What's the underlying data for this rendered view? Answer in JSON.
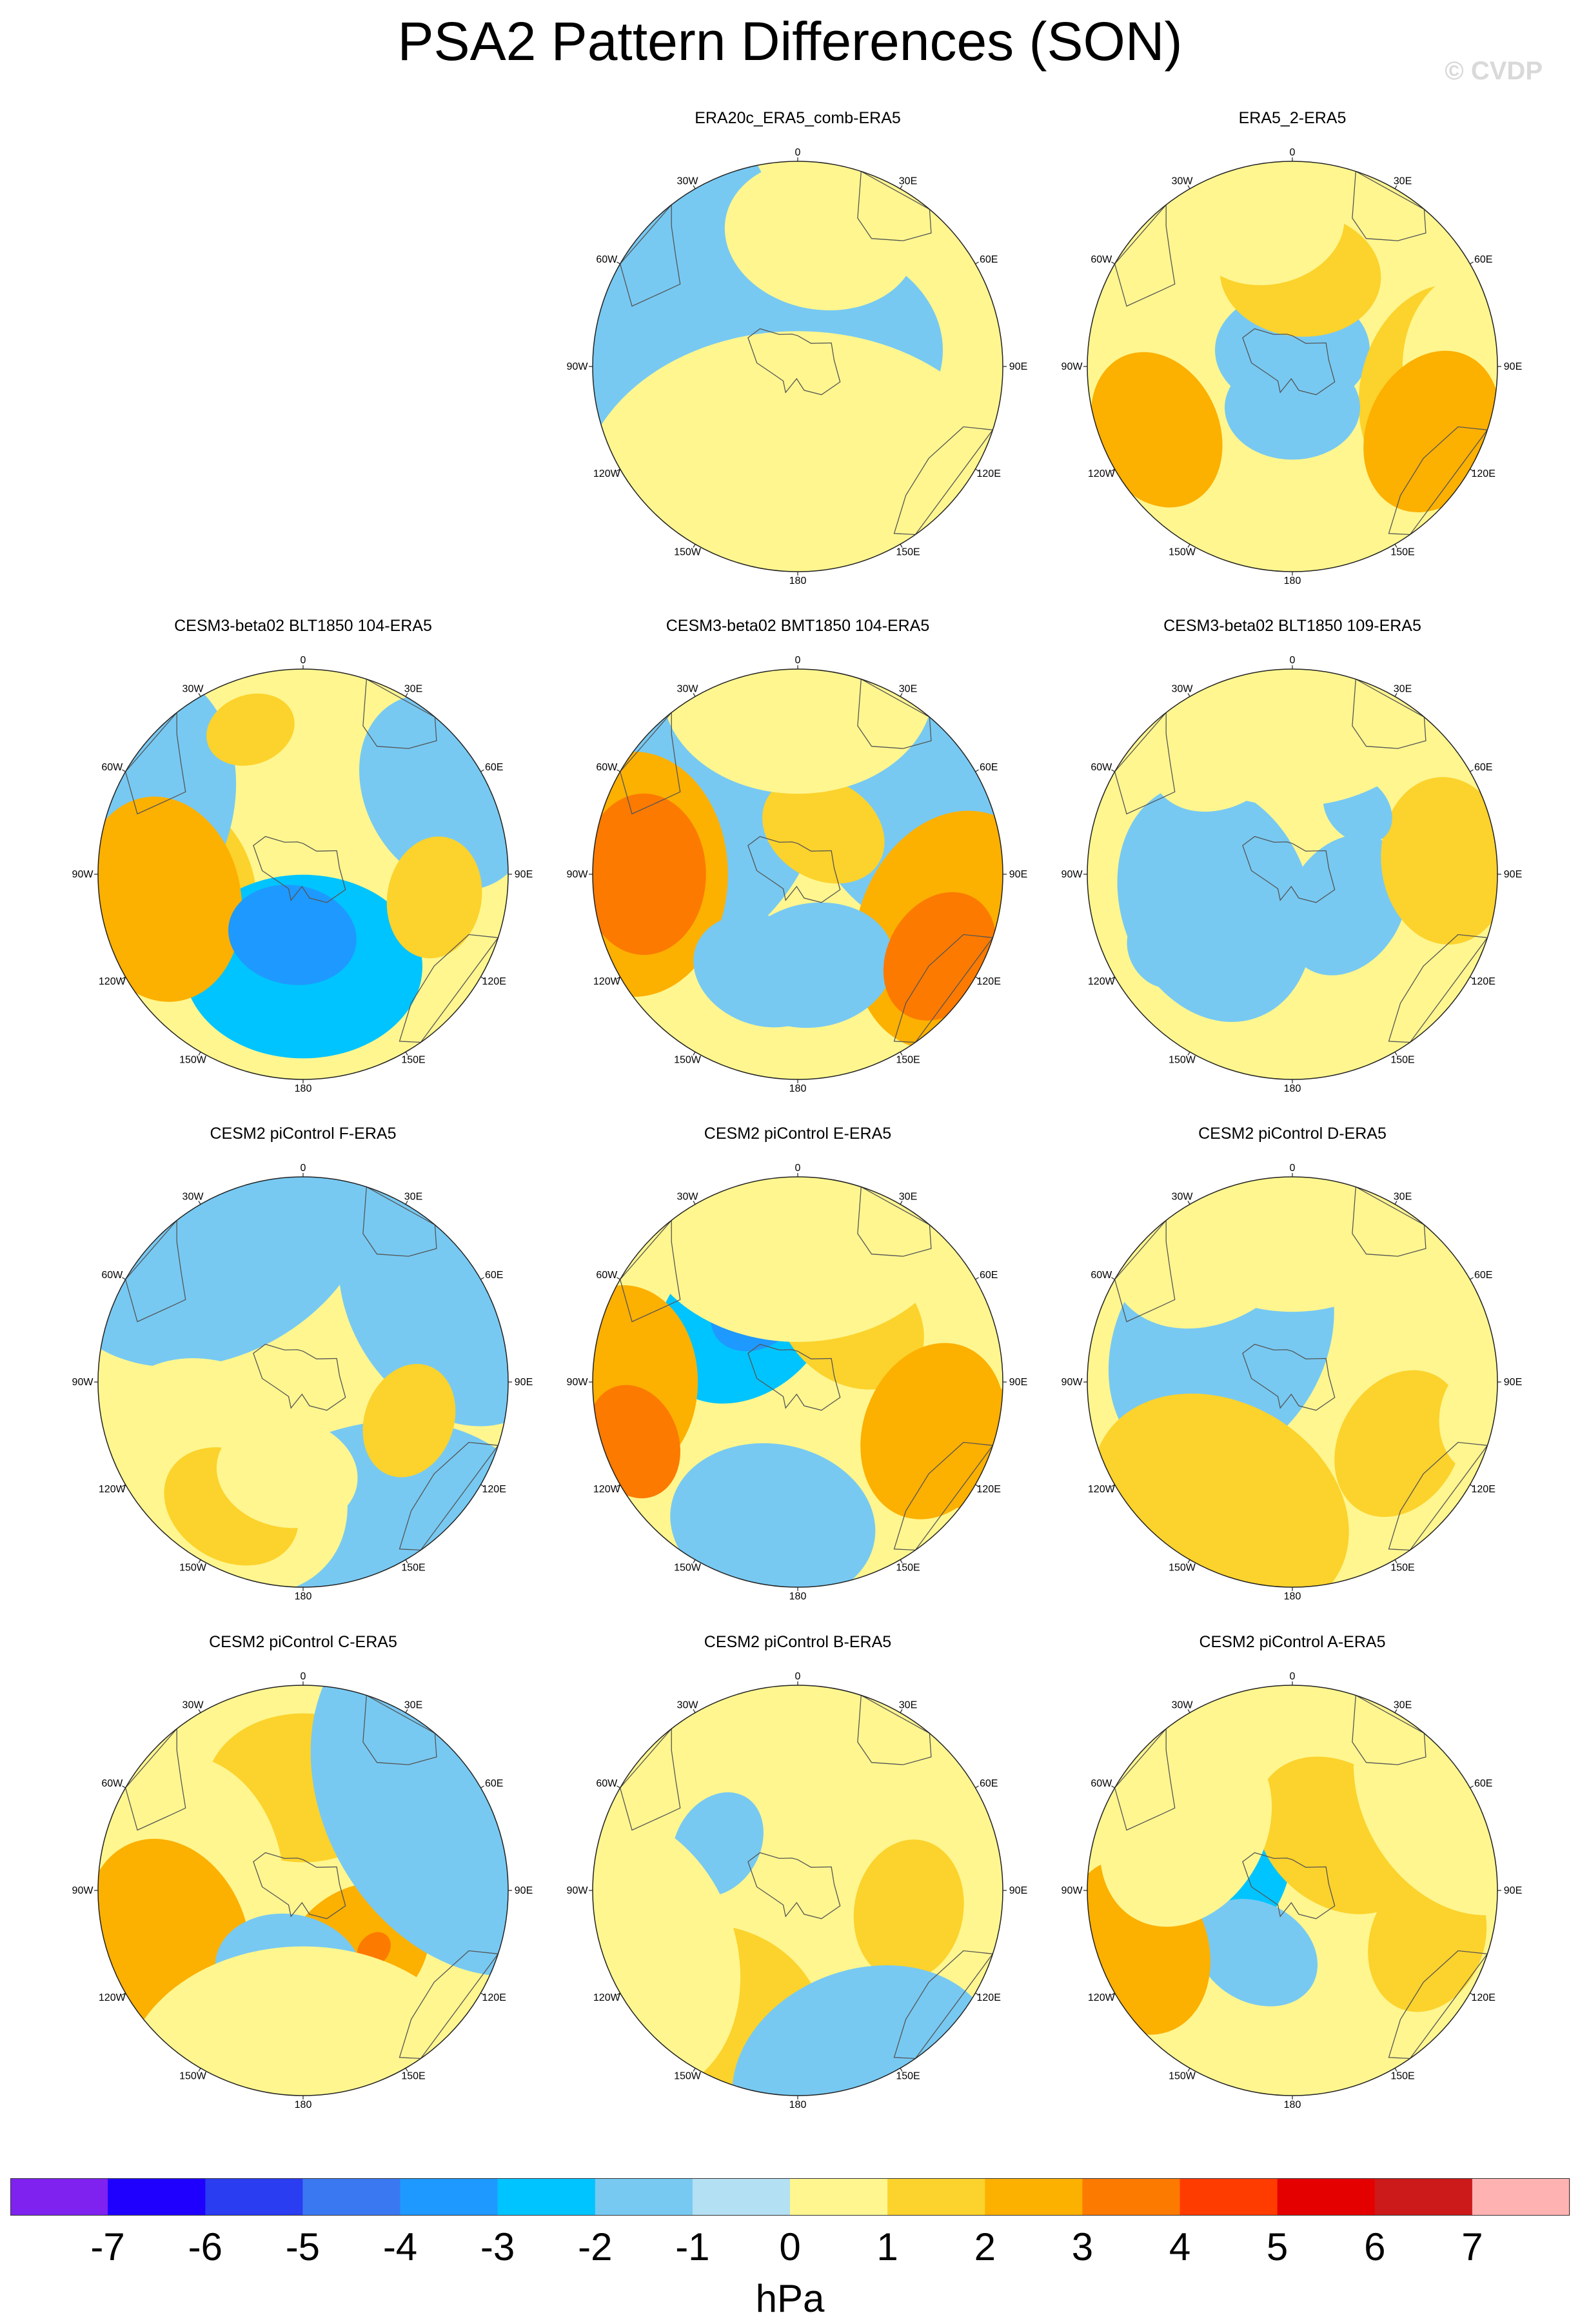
{
  "title": "PSA2 Pattern Differences (SON)",
  "watermark": "© CVDP",
  "lon_labels": [
    "0",
    "30E",
    "60E",
    "90E",
    "120E",
    "150E",
    "180",
    "150W",
    "120W",
    "90W",
    "60W",
    "30W"
  ],
  "level_colors": [
    "#7f22f0",
    "#1f00ff",
    "#2a3df0",
    "#3a78f2",
    "#1e99ff",
    "#00c4ff",
    "#77c9f2",
    "#b4e0f3",
    "#fff68f",
    "#fcd22c",
    "#fcb000",
    "#fc7a00",
    "#ff3c00",
    "#e50000",
    "#cc1a1a",
    "#ffb2b2"
  ],
  "colorbar": {
    "ticks": [
      "-7",
      "-6",
      "-5",
      "-4",
      "-3",
      "-2",
      "-1",
      "0",
      "1",
      "2",
      "3",
      "4",
      "5",
      "6",
      "7"
    ],
    "units": "hPa"
  },
  "panels": [
    {
      "title": "ERA20c_ERA5_comb-ERA5",
      "blobs": [
        [
          -1,
          30,
          230,
          -2,
          320
        ],
        [
          -1,
          95,
          290,
          -1,
          650
        ],
        [
          -1,
          8,
          0,
          -1,
          450
        ],
        [
          -1,
          52,
          250,
          -1,
          590
        ],
        [
          0,
          75,
          190,
          0,
          520
        ],
        [
          1,
          65,
          10,
          0,
          300
        ],
        [
          -1,
          48,
          205,
          -4,
          400
        ],
        [
          -1,
          30,
          200,
          -5,
          210
        ],
        [
          -1,
          65,
          180,
          0,
          680
        ]
      ]
    },
    {
      "title": "ERA5_2-ERA5",
      "blobs": [
        [
          -1,
          75,
          255,
          0,
          300
        ],
        [
          -1,
          90,
          300,
          0,
          520
        ],
        [
          -1,
          8,
          0,
          -1,
          240
        ],
        [
          -1,
          75,
          100,
          1,
          340
        ],
        [
          -1,
          20,
          180,
          -1,
          210
        ],
        [
          -1,
          90,
          90,
          0,
          300
        ],
        [
          -1,
          73,
          245,
          2,
          250
        ],
        [
          -1,
          75,
          115,
          2,
          260
        ],
        [
          -1,
          45,
          5,
          1,
          250
        ],
        [
          -1,
          70,
          350,
          0,
          240
        ]
      ]
    },
    {
      "title": "CESM3-beta02 BLT1850 104-ERA5",
      "blobs": [
        [
          -1,
          20,
          10,
          0,
          180
        ],
        [
          -1,
          60,
          260,
          1,
          300
        ],
        [
          -1,
          105,
          270,
          0,
          400
        ],
        [
          -1,
          45,
          180,
          -2,
          370
        ],
        [
          -1,
          95,
          290,
          -1,
          450
        ],
        [
          -1,
          80,
          60,
          -1,
          320
        ],
        [
          -1,
          65,
          100,
          1,
          190
        ],
        [
          -1,
          70,
          260,
          2,
          320
        ],
        [
          -1,
          75,
          340,
          1,
          140
        ],
        [
          -1,
          30,
          190,
          -3,
          200
        ]
      ]
    },
    {
      "title": "CESM3-beta02 BMT1850 104-ERA5",
      "blobs": [
        [
          -1,
          60,
          300,
          -1,
          500
        ],
        [
          -1,
          65,
          60,
          -1,
          420
        ],
        [
          -1,
          80,
          270,
          2,
          380
        ],
        [
          -1,
          80,
          110,
          2,
          380
        ],
        [
          -1,
          25,
          30,
          1,
          200
        ],
        [
          -1,
          45,
          170,
          -1,
          250
        ],
        [
          -1,
          90,
          0,
          0,
          420
        ],
        [
          -1,
          80,
          120,
          3,
          210
        ],
        [
          -1,
          75,
          270,
          3,
          250
        ],
        [
          -1,
          50,
          200,
          -1,
          220
        ]
      ]
    },
    {
      "title": "CESM3-beta02 BLT1850 109-ERA5",
      "blobs": [
        [
          -1,
          40,
          250,
          -1,
          380
        ],
        [
          -1,
          30,
          120,
          -1,
          230
        ],
        [
          -1,
          75,
          85,
          1,
          260
        ],
        [
          -1,
          70,
          330,
          0,
          230
        ],
        [
          -1,
          75,
          240,
          -1,
          120
        ],
        [
          -1,
          45,
          45,
          -1,
          120
        ],
        [
          -1,
          90,
          0,
          0,
          470
        ]
      ]
    },
    {
      "title": "CESM2 piControl F-ERA5",
      "blobs": [
        [
          -1,
          90,
          330,
          -1,
          540
        ],
        [
          -1,
          85,
          60,
          -1,
          430
        ],
        [
          -1,
          95,
          160,
          -1,
          560
        ],
        [
          -1,
          60,
          220,
          0,
          420
        ],
        [
          -1,
          55,
          110,
          1,
          180
        ],
        [
          -1,
          70,
          210,
          1,
          220
        ],
        [
          -1,
          45,
          190,
          0,
          220
        ]
      ]
    },
    {
      "title": "CESM2 piControl E-ERA5",
      "blobs": [
        [
          -1,
          40,
          320,
          -2,
          300
        ],
        [
          -1,
          40,
          330,
          -3,
          150
        ],
        [
          -1,
          70,
          190,
          -1,
          320
        ],
        [
          -1,
          40,
          40,
          1,
          250
        ],
        [
          -1,
          70,
          110,
          2,
          280
        ],
        [
          -1,
          85,
          270,
          2,
          300
        ],
        [
          -1,
          85,
          250,
          3,
          180
        ],
        [
          -1,
          90,
          110,
          2,
          200
        ],
        [
          -1,
          80,
          0,
          0,
          500
        ]
      ]
    },
    {
      "title": "CESM2 piControl D-ERA5",
      "blobs": [
        [
          -1,
          50,
          300,
          -2,
          330
        ],
        [
          -1,
          40,
          300,
          -1,
          420
        ],
        [
          -1,
          70,
          210,
          1,
          420
        ],
        [
          -1,
          60,
          120,
          1,
          240
        ],
        [
          -1,
          85,
          0,
          0,
          420
        ],
        [
          -1,
          80,
          330,
          0,
          330
        ],
        [
          -1,
          95,
          100,
          0,
          180
        ],
        [
          -1,
          65,
          210,
          1,
          250
        ]
      ]
    },
    {
      "title": "CESM2 piControl C-ERA5",
      "blobs": [
        [
          -1,
          50,
          0,
          1,
          300
        ],
        [
          -1,
          60,
          270,
          0,
          420
        ],
        [
          -1,
          70,
          250,
          2,
          320
        ],
        [
          -1,
          40,
          140,
          2,
          250
        ],
        [
          -1,
          45,
          130,
          3,
          60
        ],
        [
          -1,
          40,
          190,
          -1,
          230
        ],
        [
          -1,
          95,
          60,
          -1,
          600
        ],
        [
          -1,
          95,
          180,
          0,
          560
        ]
      ]
    },
    {
      "title": "CESM2 piControl B-ERA5",
      "blobs": [
        [
          -1,
          70,
          0,
          0,
          520
        ],
        [
          -1,
          65,
          210,
          1,
          300
        ],
        [
          -1,
          55,
          100,
          1,
          220
        ],
        [
          -1,
          45,
          300,
          -1,
          170
        ],
        [
          -1,
          90,
          250,
          0,
          450
        ],
        [
          -1,
          95,
          160,
          -1,
          420
        ]
      ]
    },
    {
      "title": "CESM2 piControl A-ERA5",
      "blobs": [
        [
          -1,
          60,
          0,
          0,
          430
        ],
        [
          -1,
          40,
          290,
          -2,
          300
        ],
        [
          -1,
          35,
          210,
          -1,
          200
        ],
        [
          -1,
          35,
          40,
          1,
          280
        ],
        [
          -1,
          70,
          110,
          1,
          230
        ],
        [
          -1,
          80,
          250,
          2,
          280
        ],
        [
          -1,
          60,
          300,
          0,
          320
        ],
        [
          -1,
          95,
          60,
          0,
          400
        ]
      ]
    }
  ]
}
